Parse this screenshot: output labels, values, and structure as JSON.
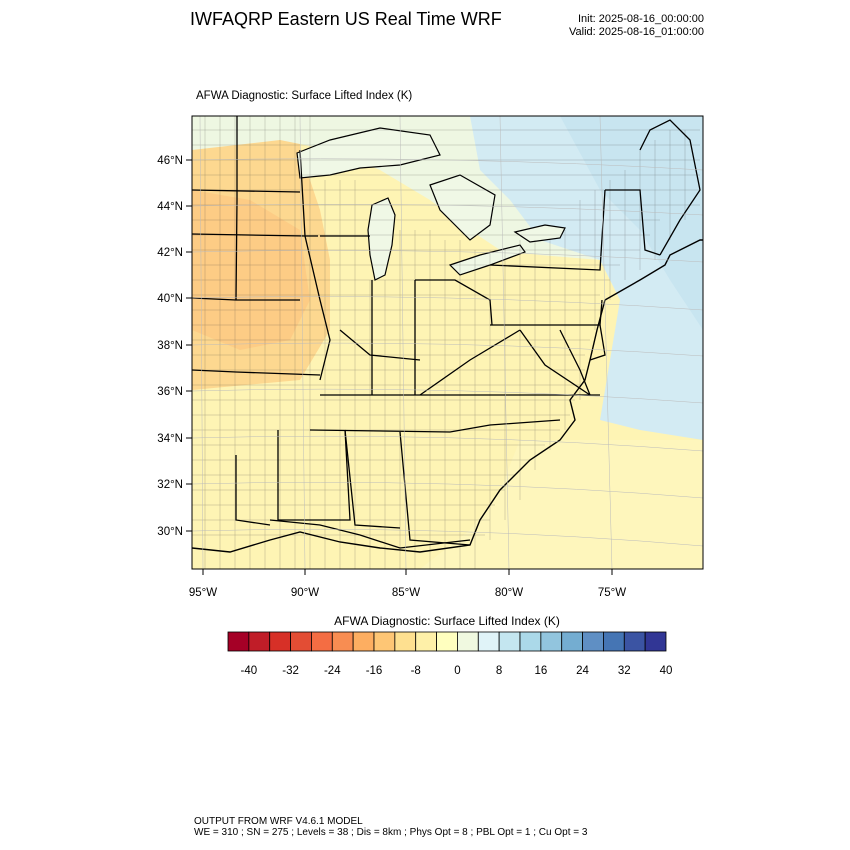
{
  "header": {
    "title": "IWFAQRP Eastern US Real Time WRF",
    "init": "Init: 2025-08-16_00:00:00",
    "valid": "Valid: 2025-08-16_01:00:00"
  },
  "panel": {
    "title": "AFWA Diagnostic: Surface Lifted Index   (K)"
  },
  "axes": {
    "lat_labels": [
      "46°N",
      "44°N",
      "42°N",
      "40°N",
      "38°N",
      "36°N",
      "34°N",
      "32°N",
      "30°N"
    ],
    "lon_labels": [
      "95°W",
      "90°W",
      "85°W",
      "80°W",
      "75°W"
    ]
  },
  "colorbar": {
    "title": "AFWA Diagnostic: Surface Lifted Index  (K)",
    "tick_labels": [
      "-40",
      "-32",
      "-24",
      "-16",
      "-8",
      "0",
      "8",
      "16",
      "24",
      "32",
      "40"
    ],
    "colors": [
      "#a50026",
      "#c01d28",
      "#d73027",
      "#e34d34",
      "#f46d43",
      "#f88d52",
      "#fdae61",
      "#fec675",
      "#fee090",
      "#fef0a8",
      "#ffffbf",
      "#f0f9e0",
      "#e0f3f8",
      "#c4e6f0",
      "#abd9e9",
      "#92c5de",
      "#74add1",
      "#5f8fc4",
      "#4575b4",
      "#3b54a3",
      "#313695"
    ]
  },
  "footer": {
    "line1": "OUTPUT FROM WRF V4.6.1 MODEL",
    "line2": "WE = 310 ; SN = 275 ; Levels = 38 ; Dis = 8km ; Phys Opt = 8 ; PBL Opt = 1 ; Cu Opt = 3"
  },
  "field_colors": {
    "land_south": "#fef3b0",
    "land_west": "#fde29a",
    "land_northwest": "#fdd18a",
    "lakes_region": "#f3f9dc",
    "ocean_north": "#d6edf4",
    "ocean_south": "#fef6b8",
    "great_lakes": "#eef7e4"
  }
}
